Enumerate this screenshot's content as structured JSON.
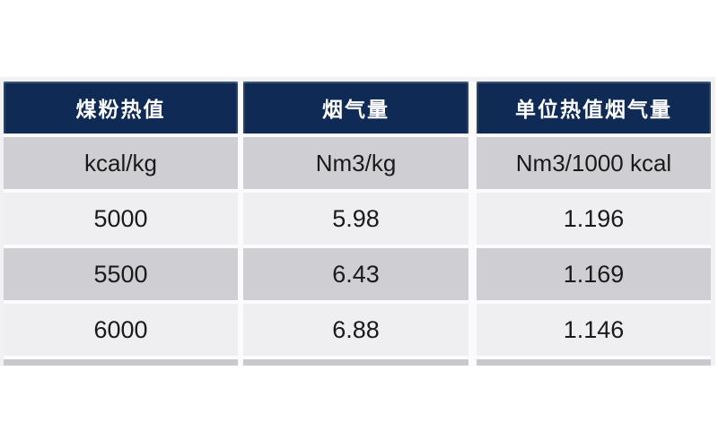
{
  "page": {
    "background": "#ffffff"
  },
  "chart_data": {
    "type": "table",
    "columns": [
      "煤粉热值",
      "烟气量",
      "单位热值烟气量"
    ],
    "units": [
      "kcal/kg",
      "Nm3/kg",
      "Nm3/1000 kcal"
    ],
    "rows": [
      [
        "5000",
        "5.98",
        "1.196"
      ],
      [
        "5500",
        "6.43",
        "1.169"
      ],
      [
        "6000",
        "6.88",
        "1.146"
      ]
    ],
    "layout_hints": {
      "header_style": "dark-navy band, white bold text",
      "row_striping": "units/5500 medium gray, 5000/6000 light gray",
      "bottom_row": "next row cut off at image edge (gray sliver)"
    }
  },
  "colors": {
    "header_bg": "#0e2a55",
    "header_text": "#ffffff",
    "row_gray": "#cfcfd3",
    "row_light": "#efeff1",
    "cutoff_gray": "#c8c8cd",
    "outer_border": "#f1f1f3",
    "gap_color": "#fbfbfd",
    "body_text": "#1a1a1a"
  }
}
